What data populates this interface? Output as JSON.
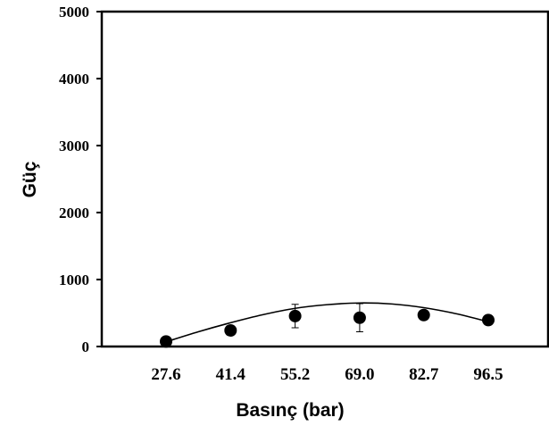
{
  "chart_data": {
    "type": "scatter",
    "title": "",
    "xlabel": "Basınç (bar)",
    "ylabel": "Güç",
    "categories": [
      "27.6",
      "41.4",
      "55.2",
      "69.0",
      "82.7",
      "96.5"
    ],
    "x": [
      27.6,
      41.4,
      55.2,
      69.0,
      82.7,
      96.5
    ],
    "y_ticks": [
      "0",
      "1000",
      "2000",
      "3000",
      "4000",
      "5000"
    ],
    "ylim": [
      0,
      5000
    ],
    "grid": false,
    "series": [
      {
        "values": [
          75,
          240,
          455,
          430,
          470,
          395
        ],
        "error": [
          0,
          0,
          175,
          210,
          0,
          0
        ],
        "marker": "circle",
        "color": "#000000"
      }
    ],
    "fit_curve": {
      "type": "polynomial",
      "x": [
        27.6,
        34.5,
        41.4,
        48.3,
        55.2,
        62.1,
        69.0,
        75.9,
        82.7,
        89.6,
        96.5
      ],
      "y": [
        70,
        220,
        355,
        475,
        570,
        625,
        650,
        635,
        580,
        490,
        370
      ],
      "color": "#000000"
    }
  }
}
